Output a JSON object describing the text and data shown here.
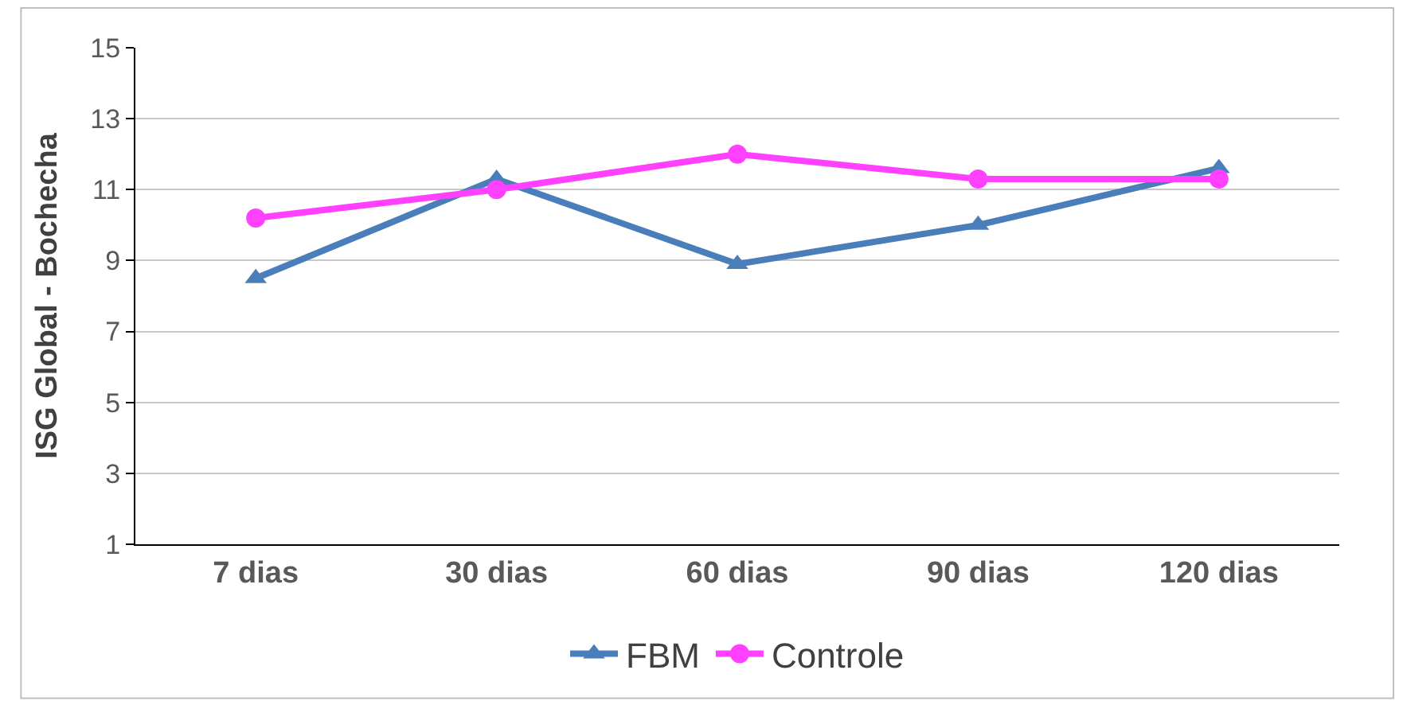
{
  "chart_data": {
    "type": "line",
    "ylabel": "ISG Global - Bochecha",
    "categories": [
      "7 dias",
      "30 dias",
      "60 dias",
      "90 dias",
      "120 dias"
    ],
    "series": [
      {
        "name": "FBM",
        "color": "#4a7ebb",
        "marker": "triangle",
        "values": [
          8.5,
          11.3,
          8.9,
          10.0,
          11.6
        ]
      },
      {
        "name": "Controle",
        "color": "#ff40ff",
        "marker": "circle",
        "values": [
          10.2,
          11.0,
          12.0,
          11.3,
          11.3
        ]
      }
    ],
    "ylim": [
      1,
      15
    ],
    "yticks": [
      1,
      3,
      5,
      7,
      9,
      11,
      13,
      15
    ],
    "grid": "y",
    "legend": "bottom",
    "line_style": "solid"
  }
}
